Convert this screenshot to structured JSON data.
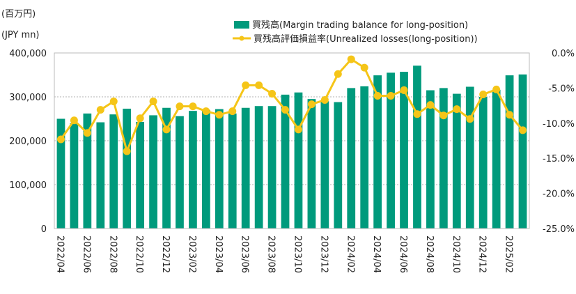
{
  "chart_data": {
    "type": "bar+line",
    "y_left_unit_line1": "(百万円)",
    "y_left_unit_line2": "(JPY mn)",
    "y_left_ticks": [
      "400,000",
      "300,000",
      "200,000",
      "100,000",
      "0"
    ],
    "y_right_ticks": [
      "0.0%",
      "-5.0%",
      "-10.0%",
      "-15.0%",
      "-20.0%",
      "-25.0%"
    ],
    "ylim_left": [
      0,
      400000
    ],
    "ylim_right": [
      -25,
      0
    ],
    "x_tick_labels": [
      {
        "index": 0,
        "label": "2022/04"
      },
      {
        "index": 2,
        "label": "2022/06"
      },
      {
        "index": 4,
        "label": "2022/08"
      },
      {
        "index": 6,
        "label": "2022/10"
      },
      {
        "index": 8,
        "label": "2022/12"
      },
      {
        "index": 10,
        "label": "2023/02"
      },
      {
        "index": 12,
        "label": "2023/04"
      },
      {
        "index": 14,
        "label": "2023/06"
      },
      {
        "index": 16,
        "label": "2023/08"
      },
      {
        "index": 18,
        "label": "2023/10"
      },
      {
        "index": 20,
        "label": "2023/12"
      },
      {
        "index": 22,
        "label": "2024/02"
      },
      {
        "index": 24,
        "label": "2024/04"
      },
      {
        "index": 26,
        "label": "2024/06"
      },
      {
        "index": 28,
        "label": "2024/08"
      },
      {
        "index": 30,
        "label": "2024/10"
      },
      {
        "index": 32,
        "label": "2024/12"
      },
      {
        "index": 34,
        "label": "2025/02"
      }
    ],
    "series": [
      {
        "name": "買残高(Margin trading balance for long-position)",
        "kind": "bar",
        "color": "#009a7c",
        "values": [
          250000,
          240000,
          262000,
          242000,
          260000,
          273000,
          243000,
          258000,
          275000,
          256000,
          268000,
          270000,
          272000,
          262000,
          275000,
          279000,
          279000,
          305000,
          310000,
          295000,
          290000,
          288000,
          320000,
          324000,
          349000,
          355000,
          357000,
          371000,
          315000,
          320000,
          307000,
          323000,
          300000,
          316000,
          349000,
          351000
        ]
      },
      {
        "name": "買残高評価損益率(Unrealized losses(long-position))",
        "kind": "line",
        "color": "#f5c518",
        "values": [
          -12.3,
          -9.6,
          -11.4,
          -8.1,
          -6.9,
          -14.0,
          -9.3,
          -6.9,
          -10.9,
          -7.6,
          -7.6,
          -8.3,
          -8.8,
          -8.3,
          -4.6,
          -4.6,
          -5.8,
          -8.1,
          -10.9,
          -7.3,
          -6.7,
          -3.0,
          -0.9,
          -2.1,
          -6.1,
          -6.1,
          -5.3,
          -8.7,
          -7.4,
          -8.9,
          -8.0,
          -9.4,
          -5.9,
          -5.2,
          -8.8,
          -11.0
        ]
      }
    ]
  }
}
